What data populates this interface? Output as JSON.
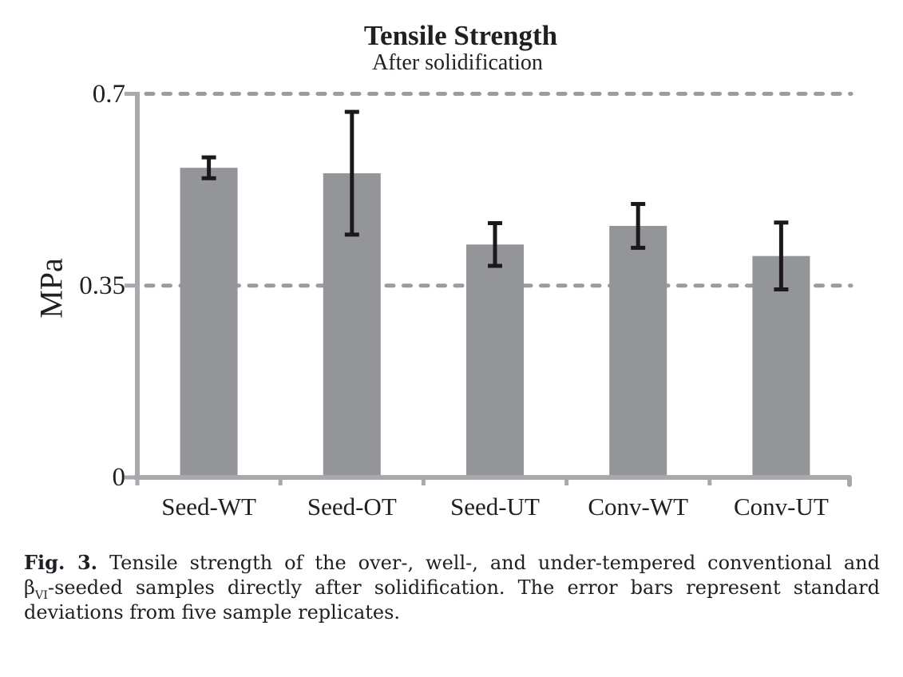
{
  "chart": {
    "title": "Tensile Strength",
    "subtitle": "After solidification",
    "ylabel": "MPa",
    "colors": {
      "bar": "#939598",
      "axis": "#a7a9ac",
      "gridline": "#9a9c9f",
      "error_bar": "#1d191a",
      "text": "#231f20",
      "caption_text": "#1e1e26",
      "background": "#ffffff"
    }
  },
  "chart_data": {
    "type": "bar",
    "title": "Tensile Strength",
    "subtitle": "After solidification",
    "xlabel": "",
    "ylabel": "MPa",
    "categories": [
      "Seed-WT",
      "Seed-OT",
      "Seed-UT",
      "Conv-WT",
      "Conv-UT"
    ],
    "values": [
      0.565,
      0.555,
      0.425,
      0.459,
      0.404
    ],
    "error_bars": [
      0.019,
      0.112,
      0.039,
      0.04,
      0.061
    ],
    "ylim": [
      0,
      0.7
    ],
    "yticks": [
      0,
      0.35,
      0.7
    ],
    "ytick_labels": [
      "0",
      "0.35",
      "0.7"
    ],
    "gridlines_at": [
      0.35,
      0.7
    ],
    "gridline_style": "dashed",
    "legend": "none",
    "bar_color": "#939598",
    "error_bar_color": "#1d191a"
  },
  "caption": {
    "lines": [
      [
        {
          "style": "bold",
          "text": "Fig. 3."
        },
        {
          "style": "normal",
          "text": " Tensile strength of the over-, well-, and under-tempered conventional and"
        }
      ],
      [
        {
          "style": "normal",
          "text": "β"
        },
        {
          "style": "sub",
          "text": "VI"
        },
        {
          "style": "normal",
          "text": "-seeded samples directly after solidification. The error bars represent standard"
        }
      ],
      [
        {
          "style": "normal",
          "text": "deviations from five sample replicates."
        }
      ]
    ]
  }
}
